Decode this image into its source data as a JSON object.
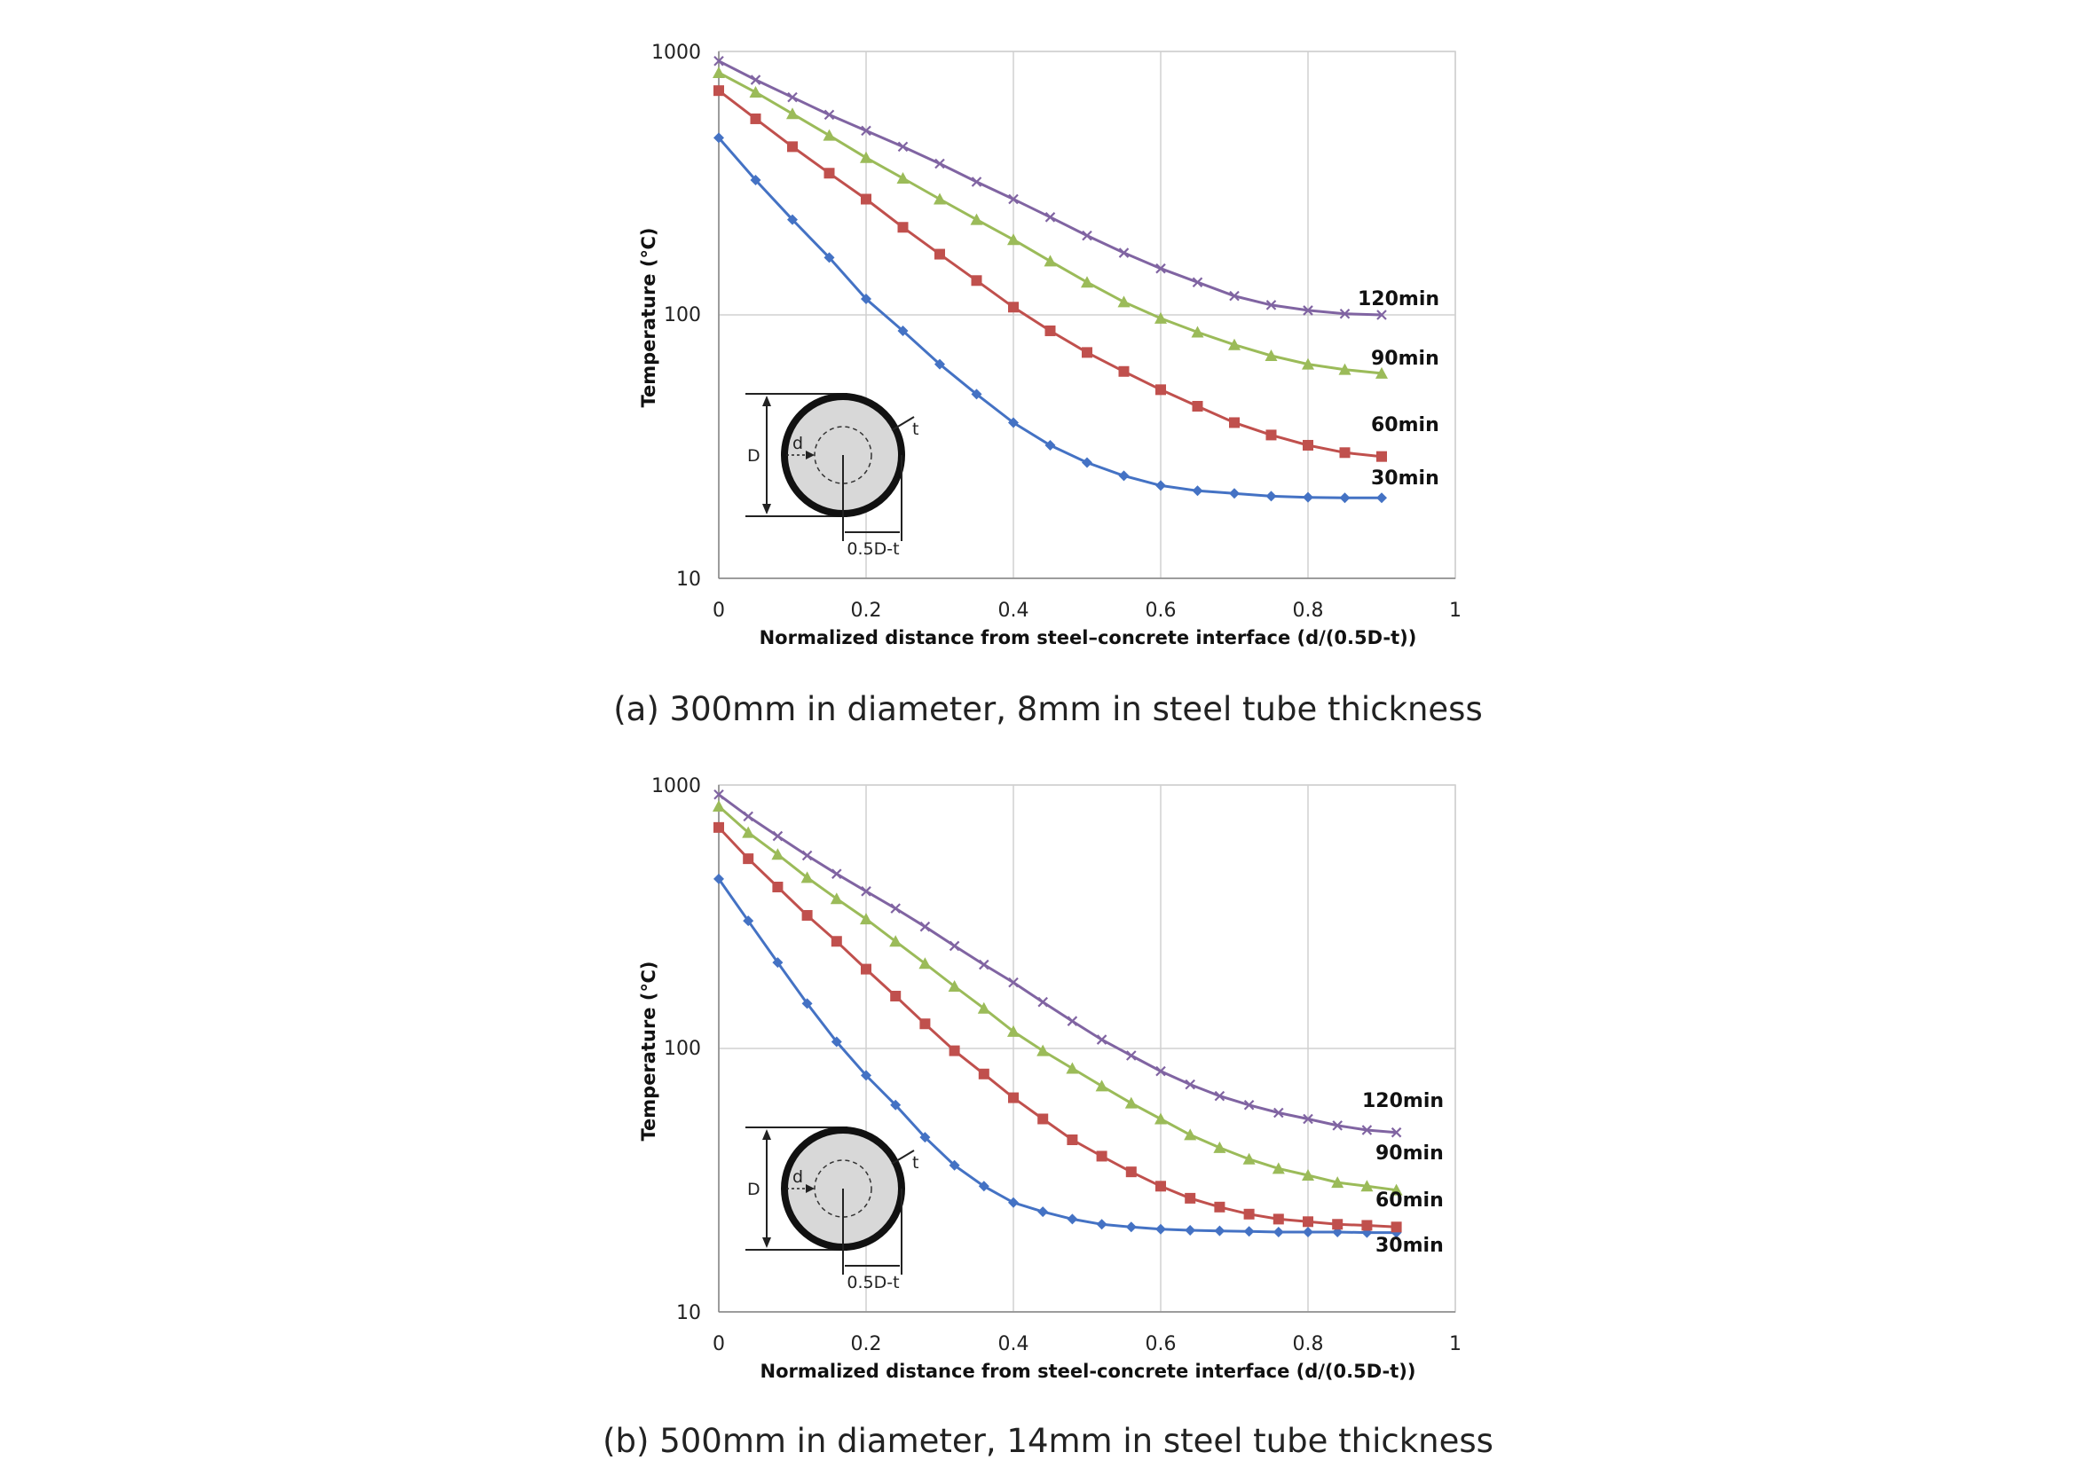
{
  "captions": {
    "a": "(a) 300mm in diameter, 8mm in steel tube thickness",
    "b": "(b) 500mm in diameter, 14mm in steel tube thickness"
  },
  "inset": {
    "D": "D",
    "d": "d",
    "t": "t",
    "half": "0.5D-t"
  },
  "chart_data": [
    {
      "type": "line",
      "xlabel": "Normalized distance from steel–concrete interface (d/(0.5D-t))",
      "ylabel": "Temperature (℃)",
      "xlim": [
        0,
        1
      ],
      "ylim": [
        10,
        1000
      ],
      "yscale": "log",
      "grid": true,
      "x_ticks": [
        "0",
        "0.2",
        "0.4",
        "0.6",
        "0.8",
        "1"
      ],
      "y_ticks": [
        "10",
        "100",
        "1000"
      ],
      "x": [
        0,
        0.05,
        0.1,
        0.15,
        0.2,
        0.25,
        0.3,
        0.35,
        0.4,
        0.45,
        0.5,
        0.55,
        0.6,
        0.65,
        0.7,
        0.75,
        0.8,
        0.85,
        0.9
      ],
      "series": [
        {
          "name": "30min",
          "color": "#4472C4",
          "marker": "diamond",
          "values": [
            470,
            325,
            230,
            165,
            115,
            87,
            65,
            50,
            39,
            32,
            27.5,
            24.5,
            22.5,
            21.5,
            21,
            20.5,
            20.3,
            20.2,
            20.2
          ]
        },
        {
          "name": "60min",
          "color": "#C0504D",
          "marker": "square",
          "values": [
            710,
            555,
            435,
            345,
            275,
            215,
            170,
            135,
            107,
            87,
            72,
            61,
            52,
            45,
            39,
            35,
            32,
            30,
            29
          ]
        },
        {
          "name": "90min",
          "color": "#9BBB59",
          "marker": "triangle",
          "values": [
            830,
            700,
            580,
            480,
            395,
            330,
            275,
            230,
            193,
            160,
            133,
            112,
            97,
            86,
            77,
            70,
            65,
            62,
            60
          ]
        },
        {
          "name": "120min",
          "color": "#8064A2",
          "marker": "x",
          "values": [
            920,
            780,
            670,
            575,
            500,
            435,
            375,
            320,
            275,
            235,
            200,
            172,
            150,
            133,
            118,
            109,
            104,
            101,
            100
          ]
        }
      ]
    },
    {
      "type": "line",
      "xlabel": "Normalized distance from steel-concrete interface (d/(0.5D-t))",
      "ylabel": "Temperature (℃)",
      "xlim": [
        0,
        1
      ],
      "ylim": [
        10,
        1000
      ],
      "yscale": "log",
      "grid": true,
      "x_ticks": [
        "0",
        "0.2",
        "0.4",
        "0.6",
        "0.8",
        "1"
      ],
      "y_ticks": [
        "10",
        "100",
        "1000"
      ],
      "x": [
        0,
        0.04,
        0.08,
        0.12,
        0.16,
        0.2,
        0.24,
        0.28,
        0.32,
        0.36,
        0.4,
        0.44,
        0.48,
        0.52,
        0.56,
        0.6,
        0.64,
        0.68,
        0.72,
        0.76,
        0.8,
        0.84,
        0.88,
        0.92
      ],
      "series": [
        {
          "name": "30min",
          "color": "#4472C4",
          "marker": "diamond",
          "values": [
            440,
            305,
            212,
            148,
            106,
            79,
            61,
            46,
            36,
            30,
            26,
            24,
            22.5,
            21.5,
            21,
            20.6,
            20.4,
            20.3,
            20.2,
            20.1,
            20.1,
            20.1,
            20,
            20
          ]
        },
        {
          "name": "60min",
          "color": "#C0504D",
          "marker": "square",
          "values": [
            690,
            525,
            410,
            320,
            255,
            200,
            158,
            124,
            98,
            80,
            65,
            54,
            45,
            39,
            34,
            30,
            27,
            25,
            23.5,
            22.5,
            22,
            21.5,
            21.3,
            21
          ]
        },
        {
          "name": "90min",
          "color": "#9BBB59",
          "marker": "triangle",
          "values": [
            830,
            660,
            545,
            445,
            370,
            310,
            255,
            210,
            172,
            142,
            116,
            98,
            84,
            72,
            62,
            54,
            47,
            42,
            38,
            35,
            33,
            31,
            30,
            29
          ]
        },
        {
          "name": "120min",
          "color": "#8064A2",
          "marker": "x",
          "values": [
            920,
            760,
            640,
            540,
            460,
            395,
            340,
            290,
            245,
            208,
            178,
            150,
            127,
            108,
            94,
            82,
            73,
            66,
            61,
            57,
            54,
            51,
            49,
            48
          ]
        }
      ]
    }
  ]
}
